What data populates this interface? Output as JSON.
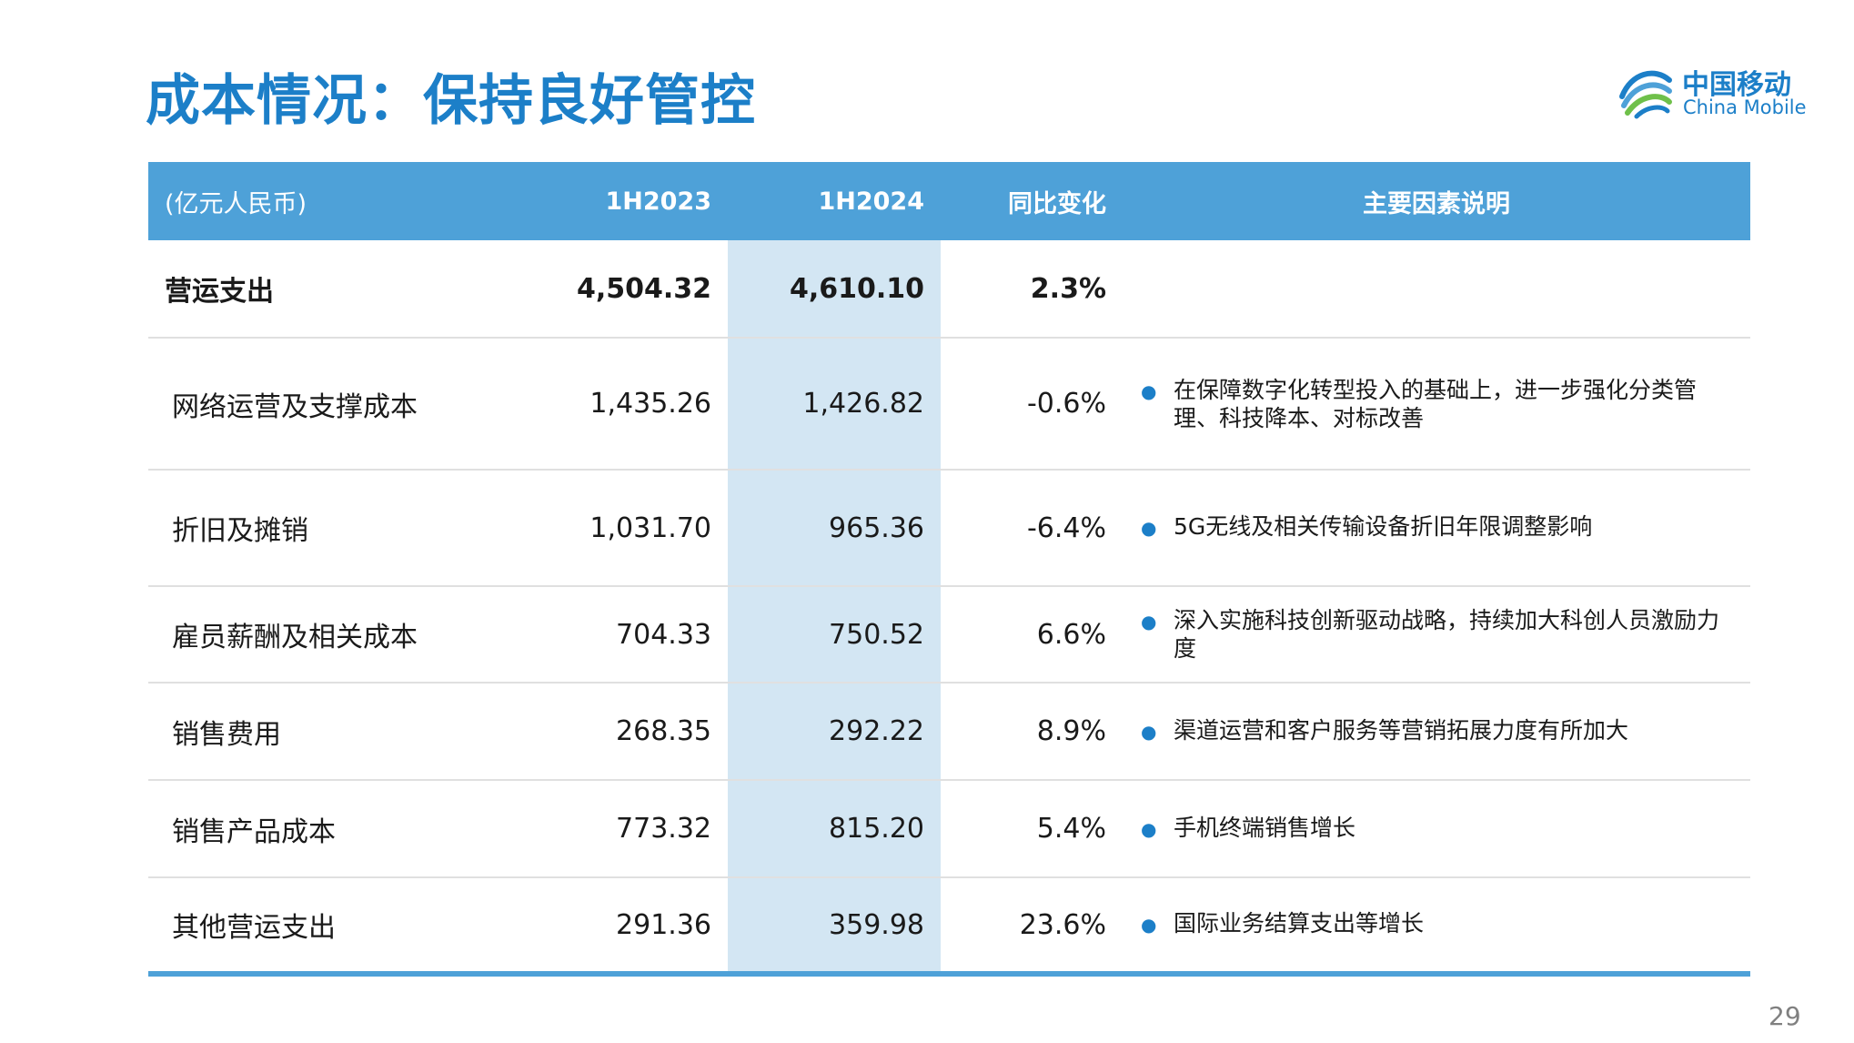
{
  "slide": {
    "title": "成本情况：保持良好管控",
    "page_number": "29"
  },
  "logo": {
    "name_cn": "中国移动",
    "name_en": "China Mobile",
    "icon": "china-mobile-logo-icon",
    "color": "#1c7fc8"
  },
  "colors": {
    "accent": "#1c7fc8",
    "header_bg": "#4ea1d8",
    "highlight_col": "#d3e6f3"
  },
  "table": {
    "headers": {
      "unit": "(亿元人民币)",
      "col1": "1H2023",
      "col2": "1H2024",
      "col3": "同比变化",
      "col4": "主要因素说明"
    },
    "rows": [
      {
        "label": "营运支出",
        "v2023": "4,504.32",
        "v2024": "4,610.10",
        "change": "2.3%",
        "factor": ""
      },
      {
        "label": "网络运营及支撑成本",
        "v2023": "1,435.26",
        "v2024": "1,426.82",
        "change": "-0.6%",
        "factor": "在保障数字化转型投入的基础上，进一步强化分类管理、科技降本、对标改善"
      },
      {
        "label": "折旧及摊销",
        "v2023": "1,031.70",
        "v2024": "965.36",
        "change": "-6.4%",
        "factor": "5G无线及相关传输设备折旧年限调整影响"
      },
      {
        "label": "雇员薪酬及相关成本",
        "v2023": "704.33",
        "v2024": "750.52",
        "change": "6.6%",
        "factor": "深入实施科技创新驱动战略，持续加大科创人员激励力度"
      },
      {
        "label": "销售费用",
        "v2023": "268.35",
        "v2024": "292.22",
        "change": "8.9%",
        "factor": "渠道运营和客户服务等营销拓展力度有所加大"
      },
      {
        "label": "销售产品成本",
        "v2023": "773.32",
        "v2024": "815.20",
        "change": "5.4%",
        "factor": "手机终端销售增长"
      },
      {
        "label": "其他营运支出",
        "v2023": "291.36",
        "v2024": "359.98",
        "change": "23.6%",
        "factor": "国际业务结算支出等增长"
      }
    ]
  }
}
